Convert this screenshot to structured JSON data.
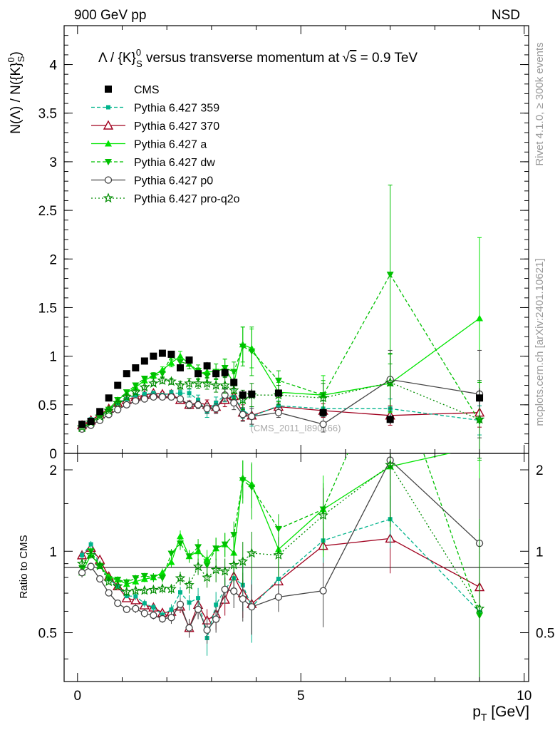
{
  "header": {
    "left": "900 GeV pp",
    "right": "NSD"
  },
  "side_texts": {
    "rivet": "Rivet 4.1.0, ≥ 300k events",
    "mcplots": "mcplots.cern.ch [arXiv:2401.10621]"
  },
  "watermark": "(CMS_2011_I890166)",
  "chart_data": {
    "type": "line",
    "title": "Λ / {K}ᵒS versus transverse momentum at √s = 0.9 TeV",
    "title_parts": {
      "main": "Λ / {K}",
      "sup": "0",
      "sub": "S",
      "rest": " versus transverse momentum at",
      "sqrt": "s",
      "energy": " = 0.9 TeV"
    },
    "ylabel_parts": {
      "pre": "N(Λ)  /  N({K}",
      "sup": "0",
      "sub": "S",
      "post": ")"
    },
    "ratio_ylabel": "Ratio to CMS",
    "xlabel_parts": {
      "p": "p",
      "sub": "T",
      "unit": " [GeV]"
    },
    "xlim": [
      -0.3,
      10.1
    ],
    "ylim_main": [
      0,
      4.4
    ],
    "ylim_ratio": [
      0.33,
      2.3
    ],
    "x_ticks": [
      "0",
      "5",
      "10"
    ],
    "y_ticks_main": [
      "0",
      "0.5",
      "1",
      "1.5",
      "2",
      "2.5",
      "3",
      "3.5",
      "4"
    ],
    "y_ticks_ratio": [
      "0.5",
      "1",
      "2"
    ],
    "y_ticks_ratio_right": [
      "0.5",
      "1",
      "2"
    ],
    "legend": [
      {
        "label": "CMS"
      },
      {
        "label": "Pythia 6.427 359"
      },
      {
        "label": "Pythia 6.427 370"
      },
      {
        "label": "Pythia 6.427 a"
      },
      {
        "label": "Pythia 6.427 dw"
      },
      {
        "label": "Pythia 6.427 p0"
      },
      {
        "label": "Pythia 6.427 pro-q2o"
      }
    ],
    "series": [
      {
        "name": "CMS",
        "color": "#000000",
        "marker": "square-filled",
        "dash": "none",
        "x": [
          0.1,
          0.3,
          0.5,
          0.7,
          0.9,
          1.1,
          1.3,
          1.5,
          1.7,
          1.9,
          2.1,
          2.3,
          2.5,
          2.7,
          2.9,
          3.1,
          3.3,
          3.5,
          3.7,
          3.9,
          4.5,
          5.5,
          7.0,
          9.0
        ],
        "y": [
          0.3,
          0.33,
          0.43,
          0.57,
          0.7,
          0.82,
          0.88,
          0.95,
          1.0,
          1.03,
          1.02,
          0.88,
          0.96,
          0.82,
          0.9,
          0.82,
          0.83,
          0.73,
          0.6,
          0.61,
          0.62,
          0.42,
          0.35,
          0.57
        ],
        "err": [
          0.01,
          0.01,
          0.01,
          0.01,
          0.01,
          0.01,
          0.01,
          0.01,
          0.01,
          0.02,
          0.03,
          0.03,
          0.03,
          0.03,
          0.04,
          0.04,
          0.05,
          0.05,
          0.05,
          0.05,
          0.03,
          0.04,
          0.05,
          0.1
        ]
      },
      {
        "name": "Pythia 6.427 359",
        "color": "#00b48c",
        "marker": "square-small",
        "dash": "5,3",
        "x": [
          0.1,
          0.3,
          0.5,
          0.7,
          0.9,
          1.1,
          1.3,
          1.5,
          1.7,
          1.9,
          2.1,
          2.3,
          2.5,
          2.7,
          2.9,
          3.1,
          3.3,
          3.5,
          3.7,
          3.9,
          4.5,
          5.5,
          7.0,
          9.0
        ],
        "y": [
          0.29,
          0.35,
          0.38,
          0.45,
          0.52,
          0.56,
          0.6,
          0.61,
          0.62,
          0.6,
          0.62,
          0.62,
          0.62,
          0.55,
          0.43,
          0.52,
          0.6,
          0.58,
          0.45,
          0.38,
          0.49,
          0.46,
          0.46,
          0.34
        ],
        "err": [
          0.01,
          0.01,
          0.01,
          0.01,
          0.01,
          0.01,
          0.02,
          0.02,
          0.02,
          0.02,
          0.03,
          0.03,
          0.04,
          0.05,
          0.06,
          0.06,
          0.07,
          0.08,
          0.09,
          0.1,
          0.05,
          0.08,
          0.1,
          0.15
        ]
      },
      {
        "name": "Pythia 6.427 370",
        "color": "#a0001e",
        "marker": "triangle-open",
        "dash": "none",
        "x": [
          0.1,
          0.3,
          0.5,
          0.7,
          0.9,
          1.1,
          1.3,
          1.5,
          1.7,
          1.9,
          2.1,
          2.3,
          2.5,
          2.7,
          2.9,
          3.1,
          3.3,
          3.5,
          3.7,
          3.9,
          4.5,
          5.5,
          7.0,
          9.0
        ],
        "y": [
          0.29,
          0.34,
          0.4,
          0.46,
          0.52,
          0.55,
          0.58,
          0.6,
          0.62,
          0.61,
          0.61,
          0.55,
          0.5,
          0.52,
          0.5,
          0.48,
          0.55,
          0.59,
          0.42,
          0.39,
          0.48,
          0.44,
          0.39,
          0.42
        ],
        "err": [
          0.01,
          0.01,
          0.01,
          0.01,
          0.01,
          0.01,
          0.02,
          0.02,
          0.02,
          0.02,
          0.03,
          0.03,
          0.04,
          0.05,
          0.05,
          0.06,
          0.07,
          0.08,
          0.08,
          0.09,
          0.05,
          0.07,
          0.1,
          0.15
        ]
      },
      {
        "name": "Pythia 6.427 a",
        "color": "#00e400",
        "marker": "triangle-filled",
        "dash": "none",
        "x": [
          0.1,
          0.3,
          0.5,
          0.7,
          0.9,
          1.1,
          1.3,
          1.5,
          1.7,
          1.9,
          2.1,
          2.3,
          2.5,
          2.7,
          2.9,
          3.1,
          3.3,
          3.5,
          3.7,
          3.9,
          4.5,
          5.5,
          7.0,
          9.0
        ],
        "y": [
          0.25,
          0.32,
          0.38,
          0.46,
          0.55,
          0.62,
          0.68,
          0.75,
          0.8,
          0.86,
          0.93,
          1.0,
          0.92,
          0.82,
          0.84,
          0.84,
          0.88,
          0.72,
          1.12,
          1.08,
          0.63,
          0.6,
          0.72,
          1.39
        ],
        "err": [
          0.01,
          0.01,
          0.01,
          0.01,
          0.01,
          0.02,
          0.02,
          0.02,
          0.03,
          0.03,
          0.04,
          0.05,
          0.05,
          0.06,
          0.07,
          0.08,
          0.09,
          0.1,
          0.18,
          0.2,
          0.1,
          0.2,
          0.3,
          0.83
        ]
      },
      {
        "name": "Pythia 6.427 dw",
        "color": "#00c000",
        "marker": "triangle-down",
        "dash": "5,3",
        "x": [
          0.1,
          0.3,
          0.5,
          0.7,
          0.9,
          1.1,
          1.3,
          1.5,
          1.7,
          1.9,
          2.1,
          2.3,
          2.5,
          2.7,
          2.9,
          3.1,
          3.3,
          3.5,
          3.7,
          3.9,
          4.5,
          5.5,
          7.0,
          9.0
        ],
        "y": [
          0.26,
          0.33,
          0.38,
          0.45,
          0.55,
          0.63,
          0.7,
          0.77,
          0.8,
          0.82,
          1.0,
          0.94,
          0.92,
          0.85,
          0.8,
          0.84,
          0.88,
          0.84,
          1.1,
          1.05,
          0.75,
          0.6,
          1.84,
          0.33
        ],
        "err": [
          0.01,
          0.01,
          0.01,
          0.01,
          0.01,
          0.02,
          0.02,
          0.02,
          0.03,
          0.03,
          0.04,
          0.05,
          0.05,
          0.06,
          0.07,
          0.08,
          0.09,
          0.1,
          0.2,
          0.25,
          0.1,
          0.15,
          0.92,
          0.4
        ]
      },
      {
        "name": "Pythia 6.427 p0",
        "color": "#444444",
        "marker": "circle-open",
        "dash": "none",
        "x": [
          0.1,
          0.3,
          0.5,
          0.7,
          0.9,
          1.1,
          1.3,
          1.5,
          1.7,
          1.9,
          2.1,
          2.3,
          2.5,
          2.7,
          2.9,
          3.1,
          3.3,
          3.5,
          3.7,
          3.9,
          4.5,
          5.5,
          7.0,
          9.0
        ],
        "y": [
          0.25,
          0.29,
          0.34,
          0.4,
          0.45,
          0.5,
          0.54,
          0.56,
          0.58,
          0.58,
          0.58,
          0.56,
          0.5,
          0.5,
          0.46,
          0.46,
          0.6,
          0.52,
          0.4,
          0.38,
          0.42,
          0.3,
          0.76,
          0.61
        ],
        "err": [
          0.01,
          0.01,
          0.01,
          0.01,
          0.01,
          0.01,
          0.02,
          0.02,
          0.02,
          0.02,
          0.03,
          0.03,
          0.04,
          0.04,
          0.05,
          0.05,
          0.06,
          0.07,
          0.07,
          0.08,
          0.05,
          0.08,
          0.3,
          0.45
        ]
      },
      {
        "name": "Pythia 6.427 pro-q2o",
        "color": "#008c00",
        "marker": "star",
        "dash": "2,3",
        "x": [
          0.1,
          0.3,
          0.5,
          0.7,
          0.9,
          1.1,
          1.3,
          1.5,
          1.7,
          1.9,
          2.1,
          2.3,
          2.5,
          2.7,
          2.9,
          3.1,
          3.3,
          3.5,
          3.7,
          3.9,
          4.5,
          5.5,
          7.0,
          9.0
        ],
        "y": [
          0.27,
          0.32,
          0.38,
          0.44,
          0.52,
          0.58,
          0.63,
          0.68,
          0.72,
          0.75,
          0.74,
          0.7,
          0.72,
          0.72,
          0.72,
          0.7,
          0.7,
          0.65,
          0.55,
          0.6,
          0.6,
          0.57,
          0.73,
          0.35
        ],
        "err": [
          0.01,
          0.01,
          0.01,
          0.01,
          0.01,
          0.02,
          0.02,
          0.02,
          0.02,
          0.03,
          0.03,
          0.04,
          0.05,
          0.05,
          0.06,
          0.07,
          0.08,
          0.09,
          0.1,
          0.12,
          0.1,
          0.15,
          0.3,
          0.4
        ]
      }
    ]
  }
}
